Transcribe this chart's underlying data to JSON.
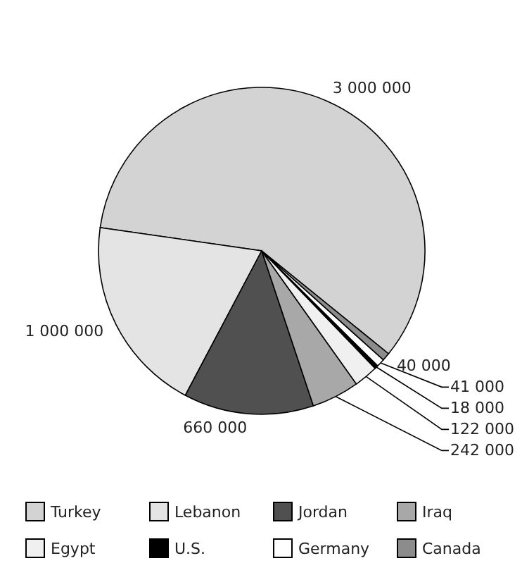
{
  "chart_data": {
    "type": "pie",
    "categories": [
      "Turkey",
      "Lebanon",
      "Jordan",
      "Iraq",
      "Egypt",
      "U.S.",
      "Germany",
      "Canada"
    ],
    "values": [
      3000000,
      1000000,
      660000,
      242000,
      122000,
      18000,
      41000,
      40000
    ],
    "value_labels": [
      "3 000 000",
      "1 000 000",
      "660 000",
      "242 000",
      "122 000",
      "18 000",
      "41 000",
      "40 000"
    ],
    "colors": [
      "#d3d3d3",
      "#e4e4e4",
      "#505050",
      "#a8a8a8",
      "#f0f0f0",
      "#000000",
      "#ffffff",
      "#8c8c8c"
    ],
    "legend": "bottom"
  }
}
